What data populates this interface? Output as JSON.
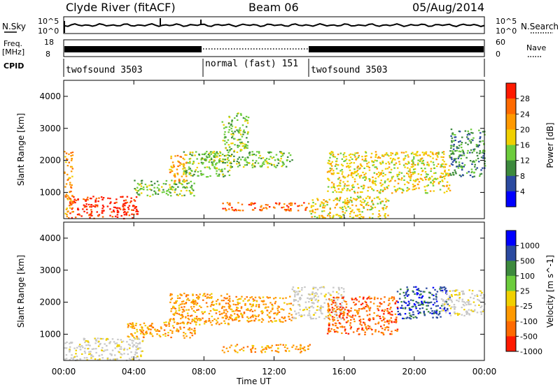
{
  "header": {
    "station": "Clyde River (fitACF)",
    "beam": "Beam 06",
    "date": "05/Aug/2014"
  },
  "noise_panel": {
    "left_label": "N.Sky",
    "left_ticks": [
      "10^5",
      "10^0"
    ],
    "right_ticks": [
      "10^5",
      "10^0"
    ],
    "right_label": "N.Search"
  },
  "freq_panel": {
    "left_label_1": "Freq.",
    "left_label_2": "[MHz]",
    "left_ticks": [
      "18",
      "8"
    ],
    "right_ticks": [
      "60",
      "0"
    ],
    "right_label": "Nave"
  },
  "cpid": {
    "label": "CPID",
    "segments": [
      {
        "name": "twofsound 3503",
        "start_h": 0,
        "end_h": 8
      },
      {
        "name": "normal (fast) 151",
        "start_h": 8,
        "end_h": 14
      },
      {
        "name": "twofsound 3503",
        "start_h": 14,
        "end_h": 24
      }
    ]
  },
  "x_axis": {
    "label": "Time UT",
    "ticks": [
      "00:00",
      "04:00",
      "08:00",
      "12:00",
      "16:00",
      "20:00",
      "00:00"
    ],
    "range_h": [
      0,
      24
    ]
  },
  "colors": {
    "scale": [
      "#0000ff",
      "#2b4aa0",
      "#3d8a3d",
      "#6ccc3c",
      "#f0d000",
      "#ff9900",
      "#ff6a00",
      "#ff1a00"
    ],
    "ground_scatter": "#c8c8c8"
  },
  "chart_data": [
    {
      "type": "heatmap",
      "parameter": "Power",
      "ylabel": "Slant Range [km]",
      "ylim": [
        180,
        4500
      ],
      "yticks": [
        "1000",
        "2000",
        "3000",
        "4000"
      ],
      "colorbar": {
        "title": "Power [dB]",
        "ticks": [
          "4",
          "8",
          "12",
          "16",
          "20",
          "24",
          "28"
        ],
        "range": [
          0,
          32
        ]
      },
      "regions": [
        {
          "t0": 0.3,
          "t1": 4.2,
          "r0": 200,
          "r1": 900,
          "value": 28
        },
        {
          "t0": 0.0,
          "t1": 0.5,
          "r0": 200,
          "r1": 2300,
          "value": 20
        },
        {
          "t0": 4.0,
          "t1": 7.5,
          "r0": 900,
          "r1": 1400,
          "value": 12
        },
        {
          "t0": 6.0,
          "t1": 7.0,
          "r0": 1300,
          "r1": 2200,
          "value": 20
        },
        {
          "t0": 6.8,
          "t1": 9.5,
          "r0": 1500,
          "r1": 2300,
          "value": 12
        },
        {
          "t0": 8.0,
          "t1": 13.0,
          "r0": 1800,
          "r1": 2300,
          "value": 12
        },
        {
          "t0": 9.0,
          "t1": 14.0,
          "r0": 450,
          "r1": 700,
          "value": 24
        },
        {
          "t0": 9.0,
          "t1": 10.5,
          "r0": 2300,
          "r1": 3500,
          "value": 12
        },
        {
          "t0": 14.0,
          "t1": 18.5,
          "r0": 200,
          "r1": 900,
          "value": 16
        },
        {
          "t0": 15.0,
          "t1": 22.0,
          "r0": 1000,
          "r1": 2300,
          "value": 16
        },
        {
          "t0": 22.0,
          "t1": 24.0,
          "r0": 1500,
          "r1": 3000,
          "value": 8
        }
      ]
    },
    {
      "type": "heatmap",
      "parameter": "Velocity",
      "ylabel": "Slant Range [km]",
      "ylim": [
        180,
        4500
      ],
      "yticks": [
        "1000",
        "2000",
        "3000",
        "4000"
      ],
      "colorbar": {
        "title": "Velocity [m s^-1]",
        "ticks": [
          "1000",
          "500",
          "100",
          "25",
          "-25",
          "-100",
          "-500",
          "-1000"
        ],
        "range": [
          -1000,
          1000
        ]
      },
      "regions": [
        {
          "t0": 0.0,
          "t1": 4.5,
          "r0": 200,
          "r1": 900,
          "value": 0
        },
        {
          "t0": 3.5,
          "t1": 7.5,
          "r0": 900,
          "r1": 1400,
          "value": -100
        },
        {
          "t0": 6.0,
          "t1": 9.5,
          "r0": 1300,
          "r1": 2300,
          "value": -100
        },
        {
          "t0": 9.0,
          "t1": 13.0,
          "r0": 1400,
          "r1": 2200,
          "value": -100
        },
        {
          "t0": 9.0,
          "t1": 14.0,
          "r0": 450,
          "r1": 700,
          "value": -100
        },
        {
          "t0": 13.0,
          "t1": 16.0,
          "r0": 1500,
          "r1": 2500,
          "value": 0
        },
        {
          "t0": 15.0,
          "t1": 19.0,
          "r0": 1000,
          "r1": 2200,
          "value": -500
        },
        {
          "t0": 19.0,
          "t1": 22.0,
          "r0": 1500,
          "r1": 2500,
          "value": 500
        },
        {
          "t0": 21.5,
          "t1": 24.0,
          "r0": 1600,
          "r1": 2400,
          "value": 0
        }
      ]
    }
  ]
}
